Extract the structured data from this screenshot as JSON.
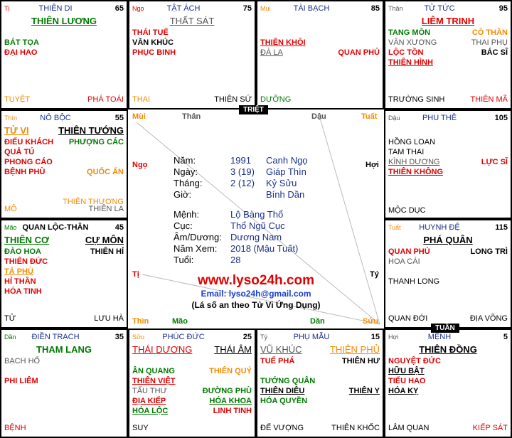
{
  "palaces": [
    {
      "pos": "Tị",
      "name": "THIÊN DI",
      "num": "65",
      "main": [
        "THIÊN LƯƠNG"
      ],
      "rows": [
        [
          "BÁT TỌA",
          ""
        ],
        [
          "ĐẠI HAO",
          ""
        ]
      ],
      "foot": [
        "TUYỆT",
        "PHÁ TOÁI"
      ]
    },
    {
      "pos": "Ngọ",
      "name": "TẬT ÁCH",
      "num": "75",
      "main": [
        "THẤT SÁT"
      ],
      "rows": [
        [
          "THÁI TUẾ",
          ""
        ],
        [
          "VĂN KHÚC",
          ""
        ],
        [
          "PHỤC BINH",
          ""
        ]
      ],
      "foot": [
        "THAI",
        "THIÊN SỨ"
      ]
    },
    {
      "pos": "Mùi",
      "name": "TÀI BẠCH",
      "num": "85",
      "main": [],
      "rows": [
        [
          "THIÊN KHÔI",
          ""
        ],
        [
          "ĐÀ LA",
          "QUAN PHỦ"
        ]
      ],
      "foot": [
        "DƯỠNG",
        ""
      ]
    },
    {
      "pos": "Thân",
      "name": "TỬ TỨC",
      "num": "95",
      "main": [
        "LIÊM TRINH"
      ],
      "rows": [
        [
          "TANG MÔN",
          "CÔ THẦN"
        ],
        [
          "VĂN XƯƠNG",
          "THAI PHỤ"
        ],
        [
          "LỘC TỒN",
          "BÁC SĨ"
        ],
        [
          "THIÊN HÌNH",
          ""
        ]
      ],
      "foot": [
        "TRƯỜNG SINH",
        "THIÊN MÃ"
      ]
    },
    {
      "pos": "Thìn",
      "name": "NÔ BỘC",
      "num": "55",
      "main": [
        "TỬ VI",
        "THIÊN TƯỚNG"
      ],
      "rows": [
        [
          "ĐIẾU KHÁCH",
          "PHƯỢNG CÁC"
        ],
        [
          "QUẢ TÚ",
          ""
        ],
        [
          "PHONG CÁO",
          ""
        ],
        [
          "BỆNH PHÙ",
          "QUỐC ẤN"
        ],
        [
          "",
          ""
        ],
        [
          "",
          "THIÊN THƯƠNG"
        ]
      ],
      "foot": [
        "MỘ",
        "THIÊN LA"
      ]
    },
    {
      "pos": "Dậu",
      "name": "PHU THÊ",
      "num": "105",
      "main": [],
      "rows": [
        [
          "HỒNG LOAN",
          ""
        ],
        [
          "TAM THAI",
          ""
        ],
        [
          "KÌNH DƯƠNG",
          "LỰC SĨ"
        ],
        [
          "THIÊN KHÔNG",
          ""
        ]
      ],
      "foot": [
        "MỘC DỤC",
        ""
      ]
    },
    {
      "pos": "Mão",
      "name": "QUAN LỘC-THÂN",
      "num": "45",
      "main": [
        "THIÊN CƠ",
        "CỰ MÔN"
      ],
      "rows": [
        [
          "ĐÀO HOA",
          "THIÊN HỈ"
        ],
        [
          "THIÊN ĐỨC",
          ""
        ],
        [
          "TẢ PHÙ",
          ""
        ],
        [
          "HỈ THẦN",
          ""
        ],
        [
          "HÓA TINH",
          ""
        ]
      ],
      "foot": [
        "TỬ",
        "LƯU HÀ"
      ]
    },
    {
      "pos": "Tuất",
      "name": "HUYNH ĐỆ",
      "num": "115",
      "main": [
        "PHÁ QUÂN"
      ],
      "rows": [
        [
          "QUAN PHỦ",
          "LONG TRÌ"
        ],
        [
          "HOA CÁI",
          ""
        ],
        [
          "",
          ""
        ],
        [
          "THANH LONG",
          ""
        ]
      ],
      "foot": [
        "QUAN ĐỚI",
        "ĐỊA VÕNG"
      ]
    },
    {
      "pos": "Dần",
      "name": "ĐIỀN TRẠCH",
      "num": "35",
      "main": [
        "THAM LANG"
      ],
      "rows": [
        [
          "BẠCH HỔ",
          ""
        ],
        [
          "",
          ""
        ],
        [
          "PHI LIÊM",
          ""
        ]
      ],
      "foot": [
        "BỆNH",
        ""
      ]
    },
    {
      "pos": "Sửu",
      "name": "PHÚC ĐỨC",
      "num": "25",
      "main": [
        "THÁI DƯƠNG",
        "THÁI ÂM"
      ],
      "rows": [
        [
          "ÂN QUANG",
          "THIÊN QUÝ"
        ],
        [
          "THIÊN VIỆT",
          ""
        ],
        [
          "TẤU THƯ",
          "ĐƯỜNG PHÙ"
        ],
        [
          "ĐỊA KIẾP",
          "HÓA KHOA"
        ],
        [
          "HÓA LỘC",
          "LINH TINH"
        ]
      ],
      "foot": [
        "SUY",
        ""
      ]
    },
    {
      "pos": "Tý",
      "name": "PHỤ MẪU",
      "num": "15",
      "main": [
        "VŨ KHÚC",
        "THIÊN PHỦ"
      ],
      "rows": [
        [
          "TUẾ PHÁ",
          "THIÊN HƯ"
        ],
        [
          "",
          ""
        ],
        [
          "TƯỚNG QUÂN",
          ""
        ],
        [
          "THIÊN DIÊU",
          "THIÊN Y"
        ],
        [
          "HÓA QUYỀN",
          ""
        ]
      ],
      "foot": [
        "ĐẾ VƯỢNG",
        "THIÊN KHỐC"
      ]
    },
    {
      "pos": "Hợi",
      "name": "MỆNH",
      "num": "5",
      "main": [
        "THIÊN ĐỒNG"
      ],
      "rows": [
        [
          "NGUYỆT ĐỨC",
          ""
        ],
        [
          "HỮU BẬT",
          ""
        ],
        [
          "TIỂU HAO",
          ""
        ],
        [
          "HÓA KỴ",
          ""
        ]
      ],
      "foot": [
        "LÂM QUAN",
        "KIẾP SÁT"
      ]
    }
  ],
  "center": {
    "tags": {
      "triet": "TRIỆT",
      "tuan": "TUẦN"
    },
    "branches": {
      "mui": "Mùi",
      "than": "Thân",
      "dau": "Dậu",
      "tuat": "Tuất",
      "ngo": "Ngọ",
      "hoi": "Hợi",
      "ti": "Tị",
      "ty": "Tý",
      "thin": "Thìn",
      "mao": "Mão",
      "dan": "Dần",
      "suu": "Sửu"
    },
    "info": [
      {
        "k": "Năm:",
        "v1": "1991",
        "v2": "Canh Ngọ"
      },
      {
        "k": "Ngày:",
        "v1": "3 (19)",
        "v2": "Giáp Thìn"
      },
      {
        "k": "Tháng:",
        "v1": "2 (12)",
        "v2": "Kỷ Sửu"
      },
      {
        "k": "Giờ:",
        "v1": "",
        "v2": "Bính Dần"
      },
      {
        "k": "Mệnh:",
        "v1": "Lộ Bàng Thổ",
        "v2": ""
      },
      {
        "k": "Cục:",
        "v1": "Thổ Ngũ Cục",
        "v2": ""
      },
      {
        "k": "Âm/Dương:",
        "v1": "Dương Nam",
        "v2": ""
      },
      {
        "k": "Năm Xem:",
        "v1": "2018 (Mậu Tuất)",
        "v2": ""
      },
      {
        "k": "Tuổi:",
        "v1": "28",
        "v2": ""
      }
    ],
    "site": "www.lyso24h.com",
    "email": "Email: lyso24h@gmail.com",
    "note": "(Lá số an theo Tử Vi Ứng Dụng)"
  },
  "colors": {
    "red": "#e00000",
    "green": "#007a00",
    "orange": "#f58a00",
    "blue": "#1a2f8a"
  }
}
